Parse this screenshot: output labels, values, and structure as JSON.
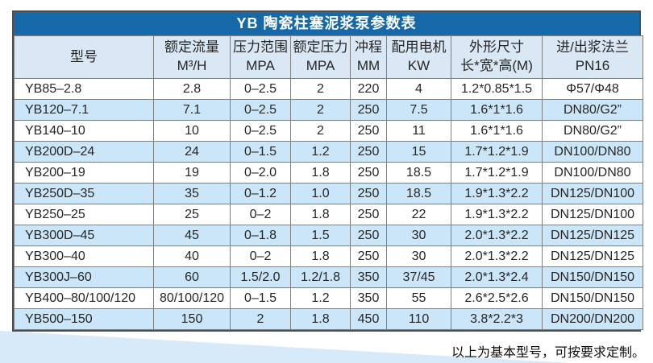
{
  "page": {
    "footer_note": "以上为基本型号，可按要求定制。"
  },
  "colors": {
    "title_bg": "#1569a9",
    "title_text": "#ffffff",
    "header_bg": "#d9e8f4",
    "row_alt_bg": "#cbe6f8",
    "border": "#7f7f7f",
    "outer_border": "#4d4d4d",
    "wedge": "#d7eafa",
    "cell_text": "#262626"
  },
  "table": {
    "title": "YB 陶瓷柱塞泥浆泵参数表",
    "columns": [
      {
        "id": "model",
        "line1": "型号",
        "line2": ""
      },
      {
        "id": "rated-flow",
        "line1": "额定流量",
        "line2": "M³/H"
      },
      {
        "id": "pressure-range",
        "line1": "压力范围",
        "line2": "MPA"
      },
      {
        "id": "rated-pressure",
        "line1": "额定压力",
        "line2": "MPA"
      },
      {
        "id": "stroke",
        "line1": "冲程",
        "line2": "MM"
      },
      {
        "id": "motor-power",
        "line1": "配用电机",
        "line2": "KW"
      },
      {
        "id": "dimensions",
        "line1": "外形尺寸",
        "line2": "长*宽*高(M)"
      },
      {
        "id": "flange",
        "line1": "进/出浆法兰",
        "line2": "PN16"
      }
    ],
    "rows": [
      [
        "YB85–2.8",
        "2.8",
        "0–2.5",
        "2",
        "220",
        "4",
        "1.2*0.85*1.5",
        "Φ57/Φ48"
      ],
      [
        "YB120–7.1",
        "7.1",
        "0–2.5",
        "2",
        "250",
        "7.5",
        "1.6*1*1.6",
        "DN80/G2”"
      ],
      [
        "YB140–10",
        "10",
        "0–2.5",
        "2",
        "250",
        "11",
        "1.6*1*1.6",
        "DN80/G2”"
      ],
      [
        "YB200D–24",
        "24",
        "0–1.5",
        "1.2",
        "250",
        "15",
        "1.7*1.2*1.9",
        "DN100/DN80"
      ],
      [
        "YB200–19",
        "19",
        "0–2.0",
        "1.8",
        "250",
        "18.5",
        "1.7*1.2*1.9",
        "DN100/DN80"
      ],
      [
        "YB250D–35",
        "35",
        "0–1.2",
        "1.0",
        "250",
        "18.5",
        "1.9*1.3*2.2",
        "DN125/DN100"
      ],
      [
        "YB250–25",
        "25",
        "0–2",
        "1.8",
        "250",
        "22",
        "1.9*1.3*2.2",
        "DN125/DN100"
      ],
      [
        "YB300D–45",
        "45",
        "0–1.8",
        "1.5",
        "250",
        "30",
        "2.0*1.3*2.2",
        "DN125/DN125"
      ],
      [
        "YB300–40",
        "40",
        "0–2",
        "1.8",
        "250",
        "30",
        "2.0*1.3*2.2",
        "DN125/DN125"
      ],
      [
        "YB300J–60",
        "60",
        "1.5/2.0",
        "1.2/1.8",
        "350",
        "37/45",
        "2.0*1.3*2.4",
        "DN150/DN150"
      ],
      [
        "YB400–80/100/120",
        "80/100/120",
        "0–1.5",
        "1.2",
        "350",
        "55",
        "2.6*2.5*2.6",
        "DN150/DN150"
      ],
      [
        "YB500–150",
        "150",
        "2",
        "1.8",
        "450",
        "110",
        "3.8*2.2*3",
        "DN200/DN200"
      ]
    ]
  }
}
